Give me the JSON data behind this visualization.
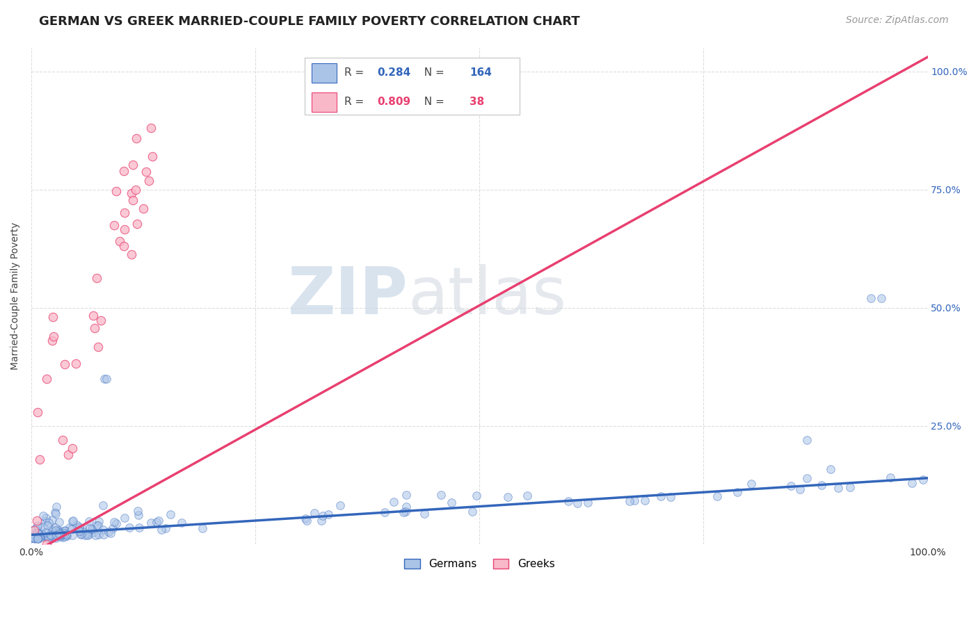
{
  "title": "GERMAN VS GREEK MARRIED-COUPLE FAMILY POVERTY CORRELATION CHART",
  "source": "Source: ZipAtlas.com",
  "ylabel": "Married-Couple Family Poverty",
  "watermark_zip": "ZIP",
  "watermark_atlas": "atlas",
  "german_R": 0.284,
  "german_N": 164,
  "greek_R": 0.809,
  "greek_N": 38,
  "german_color": "#aac4e8",
  "german_line_color": "#3366bb",
  "german_edge_color": "#3366bb",
  "greek_color": "#f9b8c8",
  "greek_line_color": "#e84070",
  "greek_edge_color": "#e84070",
  "background_color": "#ffffff",
  "grid_color": "#dddddd",
  "title_fontsize": 13,
  "source_fontsize": 10,
  "legend_fontsize": 12,
  "right_tick_color": "#3366bb"
}
